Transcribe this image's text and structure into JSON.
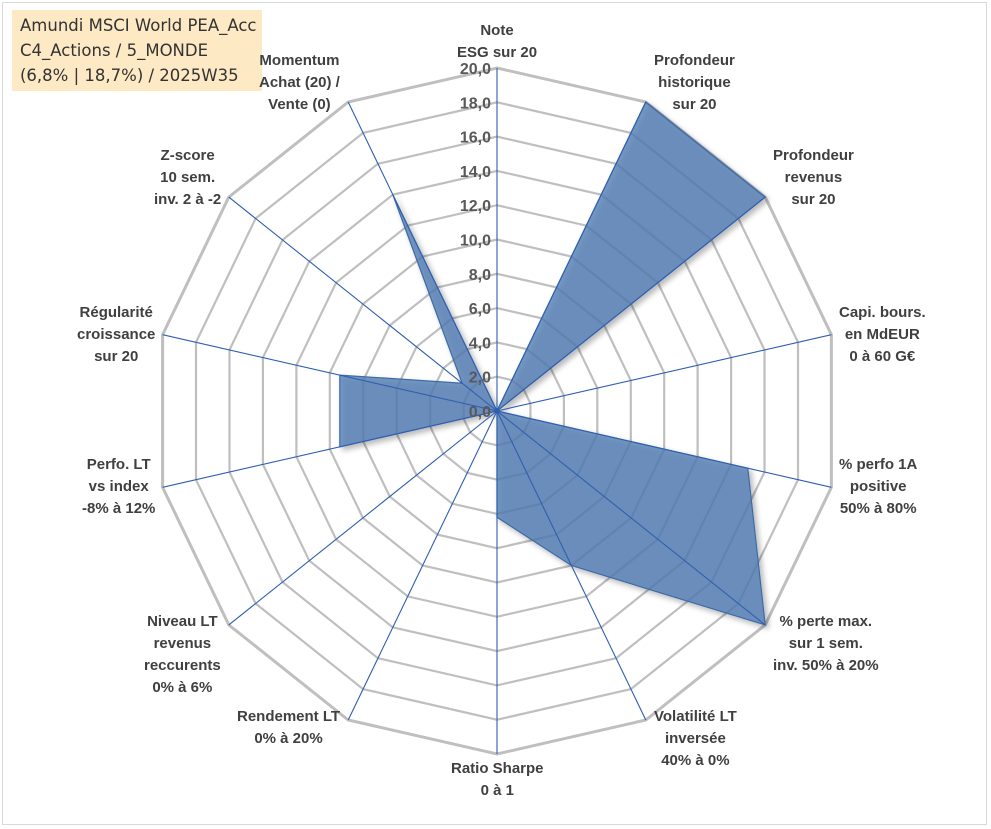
{
  "title_lines": [
    "Amundi MSCI World PEA_Acc",
    "C4_Actions / 5_MONDE",
    "(6,8% | 18,7%) / 2025W35"
  ],
  "chart_data": {
    "type": "radar",
    "rmax": 20,
    "ticks": [
      "0,0",
      "2,0",
      "4,0",
      "6,0",
      "8,0",
      "10,0",
      "12,0",
      "14,0",
      "16,0",
      "18,0",
      "20,0"
    ],
    "categories": [
      [
        "Note",
        "ESG sur 20"
      ],
      [
        "Profondeur",
        "historique",
        "sur 20"
      ],
      [
        "Profondeur",
        "revenus",
        "sur 20"
      ],
      [
        "Capi. bours.",
        "en MdEUR",
        "0 à 60 G€"
      ],
      [
        "% perfo 1A",
        "positive",
        "50% à 80%"
      ],
      [
        "% perte max.",
        "sur 1 sem.",
        "inv. 50% à 20%"
      ],
      [
        "Volatilité LT",
        "inversée",
        "40% à 0%"
      ],
      [
        "Ratio Sharpe",
        "0 à 1"
      ],
      [
        "Rendement LT",
        "0% à 20%"
      ],
      [
        "Niveau LT",
        "revenus",
        "reccurents",
        "0% à 6%"
      ],
      [
        "Perfo. LT",
        "vs index",
        "-8% à 12%"
      ],
      [
        "Régularité",
        "croissance",
        "sur 20"
      ],
      [
        "Z-score",
        "10 sem.",
        "inv. 2 à -2"
      ],
      [
        "Momentum",
        "Achat (20) /",
        "Vente (0)"
      ]
    ],
    "values": [
      0,
      20,
      20,
      0,
      15,
      20,
      10,
      6.2,
      0,
      0,
      9.4,
      9.4,
      2.6,
      14
    ],
    "fill_color": "#4f7cb3",
    "grid_color": "#bfbfbf",
    "axis_color": "#2f5fb0"
  }
}
